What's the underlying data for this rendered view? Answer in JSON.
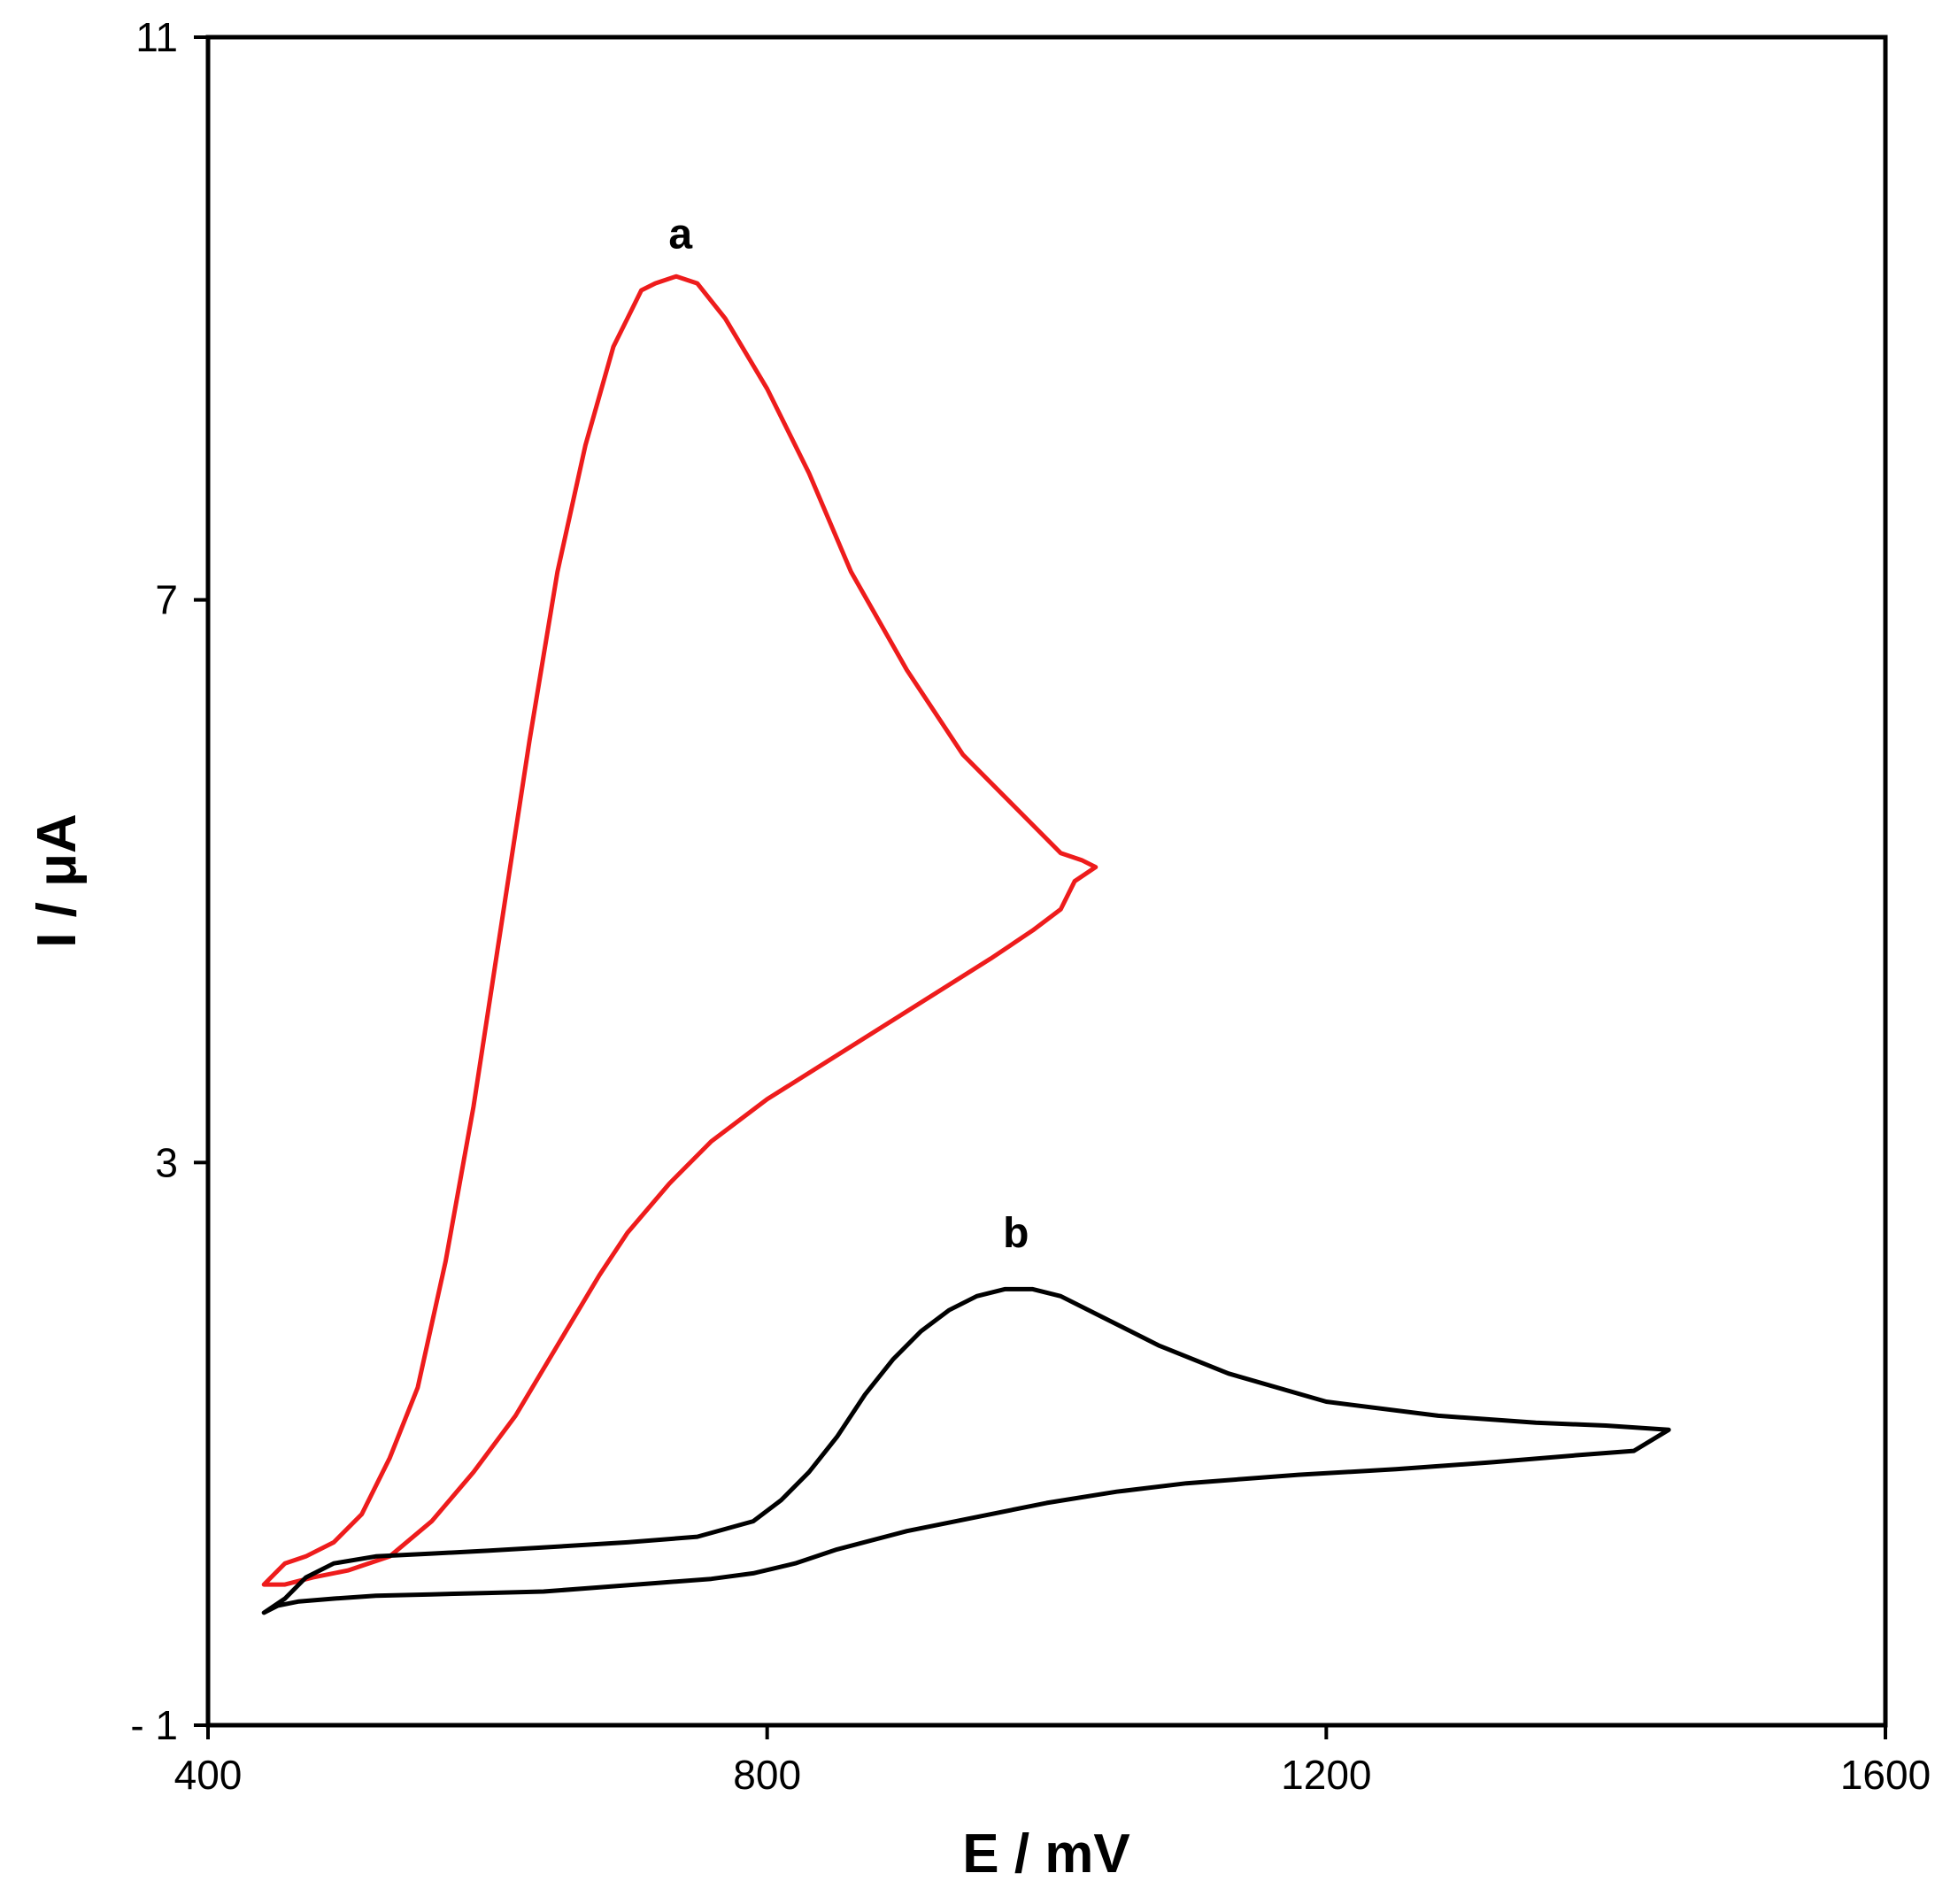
{
  "chart_data": {
    "type": "line",
    "title": "",
    "xlabel": "E / mV",
    "ylabel": "I / μA",
    "xlim": [
      400,
      1600
    ],
    "ylim": [
      -1,
      11
    ],
    "x_ticks": [
      400,
      800,
      1200,
      1600
    ],
    "x_tick_labels": [
      "400",
      "800",
      "1200",
      "1600"
    ],
    "y_ticks": [
      -1,
      3,
      7,
      11
    ],
    "y_tick_labels": [
      "- 1",
      "3",
      "7",
      "11"
    ],
    "grid": false,
    "legend": "none",
    "annotations": [
      {
        "text": "a",
        "x": 738,
        "y": 9.6
      },
      {
        "text": "b",
        "x": 978,
        "y": 2.5
      }
    ],
    "series": [
      {
        "label": "a",
        "color": "#ee1c1c",
        "x": [
          440,
          455,
          470,
          490,
          510,
          530,
          550,
          570,
          590,
          610,
          630,
          650,
          670,
          690,
          700,
          710,
          720,
          735,
          750,
          770,
          800,
          830,
          860,
          900,
          940,
          980,
          1010,
          1025,
          1035,
          1020,
          1010,
          990,
          960,
          920,
          880,
          840,
          800,
          760,
          730,
          700,
          680,
          650,
          620,
          590,
          560,
          530,
          500,
          475,
          455,
          440
        ],
        "y": [
          0.0,
          0.15,
          0.2,
          0.3,
          0.5,
          0.9,
          1.4,
          2.3,
          3.4,
          4.7,
          6.0,
          7.2,
          8.1,
          8.8,
          9.0,
          9.2,
          9.25,
          9.3,
          9.25,
          9.0,
          8.5,
          7.9,
          7.2,
          6.5,
          5.9,
          5.5,
          5.2,
          5.15,
          5.1,
          5.0,
          4.8,
          4.65,
          4.45,
          4.2,
          3.95,
          3.7,
          3.45,
          3.15,
          2.85,
          2.5,
          2.2,
          1.7,
          1.2,
          0.8,
          0.45,
          0.2,
          0.1,
          0.05,
          0.0,
          0.0
        ]
      },
      {
        "label": "b",
        "color": "#000000",
        "x": [
          440,
          455,
          470,
          490,
          520,
          560,
          600,
          650,
          700,
          750,
          790,
          810,
          830,
          850,
          870,
          890,
          910,
          930,
          950,
          970,
          990,
          1010,
          1040,
          1080,
          1130,
          1200,
          1280,
          1350,
          1400,
          1445,
          1420,
          1380,
          1320,
          1250,
          1180,
          1100,
          1050,
          1000,
          950,
          900,
          850,
          820,
          790,
          760,
          720,
          680,
          640,
          600,
          560,
          520,
          490,
          465,
          450,
          440
        ],
        "y": [
          -0.2,
          -0.1,
          0.05,
          0.15,
          0.2,
          0.22,
          0.24,
          0.27,
          0.3,
          0.34,
          0.45,
          0.6,
          0.8,
          1.05,
          1.35,
          1.6,
          1.8,
          1.95,
          2.05,
          2.1,
          2.1,
          2.05,
          1.9,
          1.7,
          1.5,
          1.3,
          1.2,
          1.15,
          1.13,
          1.1,
          0.95,
          0.92,
          0.87,
          0.82,
          0.78,
          0.72,
          0.66,
          0.58,
          0.48,
          0.38,
          0.25,
          0.15,
          0.08,
          0.04,
          0.01,
          -0.02,
          -0.05,
          -0.06,
          -0.07,
          -0.08,
          -0.1,
          -0.12,
          -0.15,
          -0.2
        ]
      }
    ]
  }
}
